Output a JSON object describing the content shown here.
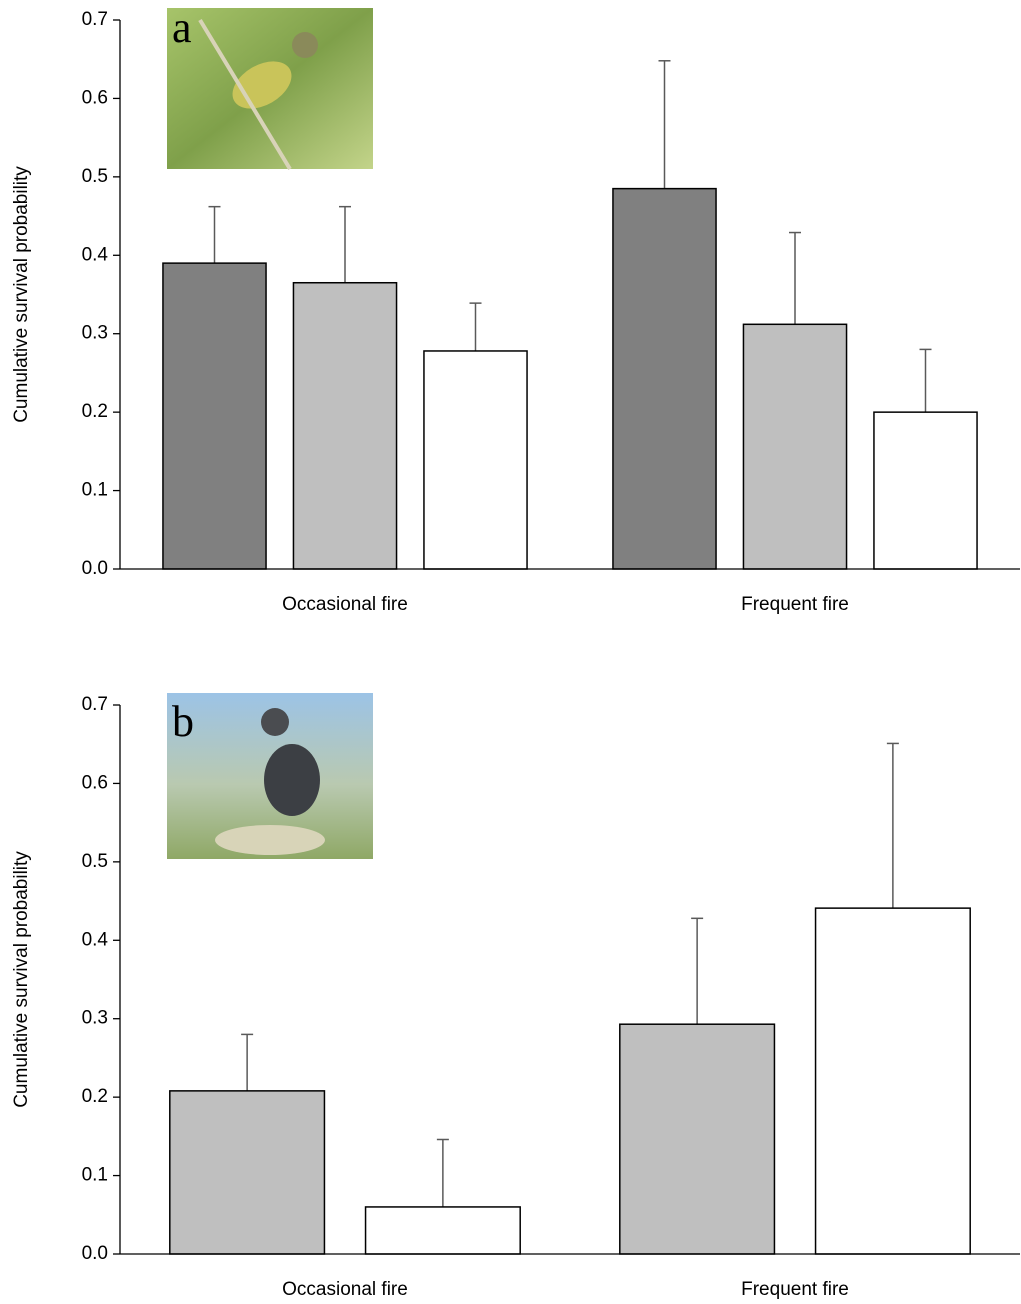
{
  "chart_data": [
    {
      "type": "bar",
      "annotation": "a",
      "ylabel": "Cumulative survival probability",
      "categories": [
        "Occasional fire",
        "Frequent fire"
      ],
      "series": [
        {
          "color": "#808080",
          "values": [
            0.39,
            0.485
          ],
          "errors": [
            0.072,
            0.163
          ]
        },
        {
          "color": "#bfbfbf",
          "values": [
            0.365,
            0.312
          ],
          "errors": [
            0.097,
            0.117
          ]
        },
        {
          "color": "#ffffff",
          "values": [
            0.278,
            0.2
          ],
          "errors": [
            0.061,
            0.08
          ]
        }
      ],
      "ylim": [
        0,
        0.7
      ],
      "yticks": [
        {
          "value": 0,
          "label": "0.0"
        },
        0.1,
        0.2,
        0.3,
        0.4,
        0.5,
        0.6,
        0.7
      ]
    },
    {
      "type": "bar",
      "annotation": "b",
      "ylabel": "Cumulative survival probability",
      "categories": [
        "Occasional fire",
        "Frequent fire"
      ],
      "series": [
        {
          "color": "#bfbfbf",
          "values": [
            0.208,
            0.293
          ],
          "errors": [
            0.072,
            0.135
          ]
        },
        {
          "color": "#ffffff",
          "values": [
            0.06,
            0.441
          ],
          "errors": [
            0.086,
            0.21
          ]
        }
      ],
      "ylim": [
        0,
        0.7
      ],
      "yticks": [
        {
          "value": 0,
          "label": "0.0"
        },
        0.1,
        0.2,
        0.3,
        0.4,
        0.5,
        0.6,
        0.7
      ]
    }
  ]
}
